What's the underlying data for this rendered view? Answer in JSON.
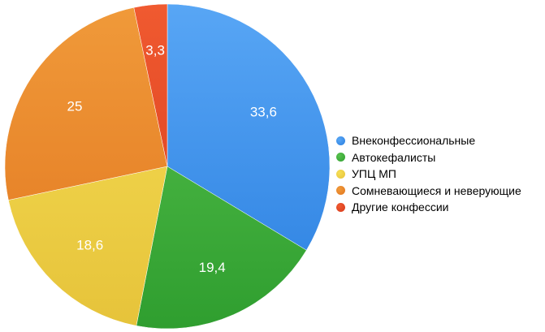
{
  "chart_data": {
    "type": "pie",
    "title": "",
    "legend_position": "right",
    "slices": [
      {
        "name": "Внеконфессиональные",
        "value": 33.6,
        "label": "33,6",
        "color": "#2a7fe0",
        "highlight": "#58a6f5"
      },
      {
        "name": "Автокефалисты",
        "value": 19.4,
        "label": "19,4",
        "color": "#2f9e2f",
        "highlight": "#58c24e"
      },
      {
        "name": "УПЦ МП",
        "value": 18.6,
        "label": "18,6",
        "color": "#e6c33a",
        "highlight": "#f6de55"
      },
      {
        "name": "Сомневающиеся и неверующие",
        "value": 25,
        "label": "25",
        "color": "#e2761f",
        "highlight": "#f09a3a"
      },
      {
        "name": "Другие конфессии",
        "value": 3.3,
        "label": "3,3",
        "color": "#d63a1c",
        "highlight": "#f05a30"
      }
    ]
  }
}
